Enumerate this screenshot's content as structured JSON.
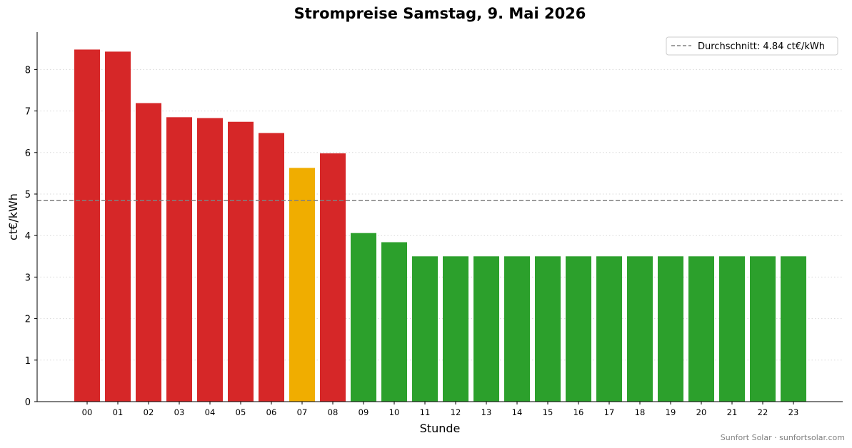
{
  "chart_data": {
    "type": "bar",
    "title": "Strompreise Samstag, 9. Mai 2026",
    "xlabel": "Stunde",
    "ylabel": "ct€/kWh",
    "ylim": [
      0,
      8.9
    ],
    "yticks": [
      0,
      1,
      2,
      3,
      4,
      5,
      6,
      7,
      8
    ],
    "grid": "horizontal dotted",
    "legend_position": "top-right",
    "categories": [
      "00",
      "01",
      "02",
      "03",
      "04",
      "05",
      "06",
      "07",
      "08",
      "09",
      "10",
      "11",
      "12",
      "13",
      "14",
      "15",
      "16",
      "17",
      "18",
      "19",
      "20",
      "21",
      "22",
      "23"
    ],
    "values": [
      8.48,
      8.43,
      7.19,
      6.85,
      6.83,
      6.74,
      6.47,
      5.63,
      5.98,
      4.06,
      3.84,
      3.5,
      3.5,
      3.5,
      3.5,
      3.5,
      3.5,
      3.5,
      3.5,
      3.5,
      3.5,
      3.5,
      3.5,
      3.5
    ],
    "bar_colors": [
      "#d62728",
      "#d62728",
      "#d62728",
      "#d62728",
      "#d62728",
      "#d62728",
      "#d62728",
      "#f0ad00",
      "#d62728",
      "#2ca02c",
      "#2ca02c",
      "#2ca02c",
      "#2ca02c",
      "#2ca02c",
      "#2ca02c",
      "#2ca02c",
      "#2ca02c",
      "#2ca02c",
      "#2ca02c",
      "#2ca02c",
      "#2ca02c",
      "#2ca02c",
      "#2ca02c",
      "#2ca02c"
    ],
    "average": {
      "value": 4.84,
      "label": "Durchschnitt: 4.84 ct€/kWh",
      "color": "#808080",
      "style": "dashed"
    }
  },
  "credit": "Sunfort Solar · sunfortsolar.com"
}
